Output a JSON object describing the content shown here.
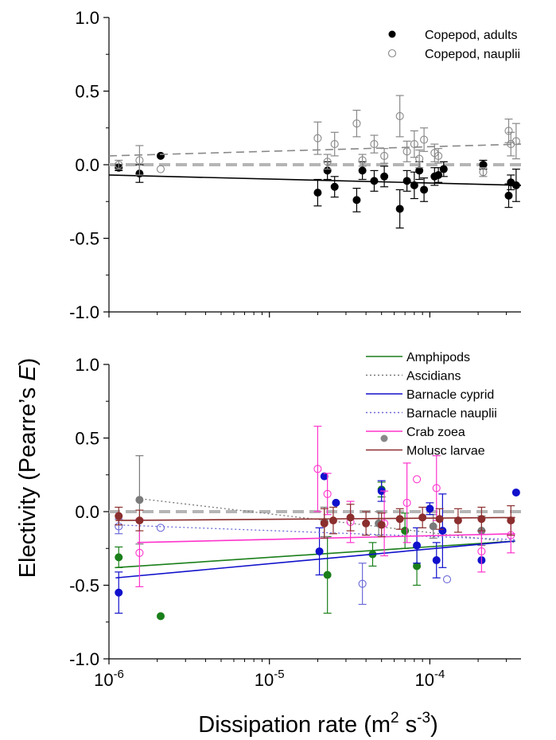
{
  "figure": {
    "ylabel_prefix": "Electivity (Pearre’s ",
    "ylabel_italic": "E",
    "ylabel_suffix": ")",
    "xlabel_prefix": "Dissipation rate (m",
    "xlabel_exp1": "2",
    "xlabel_mid": " s",
    "xlabel_exp2": "-3",
    "xlabel_suffix": ")",
    "xtick_base": "10",
    "xticks": [
      {
        "value": 1e-06,
        "exp": "-6"
      },
      {
        "value": 1e-05,
        "exp": "-5"
      },
      {
        "value": 0.0001,
        "exp": "-4"
      }
    ],
    "yticks": [
      {
        "value": 1.0,
        "label": "1.0"
      },
      {
        "value": 0.5,
        "label": "0.5"
      },
      {
        "value": 0.0,
        "label": "0.0"
      },
      {
        "value": -0.5,
        "label": "-0.5"
      },
      {
        "value": -1.0,
        "label": "-1.0"
      }
    ]
  },
  "chart_data": [
    {
      "type": "scatter",
      "xlabel": "Dissipation rate (m2 s-3)",
      "ylabel": "Electivity (Pearre's E)",
      "xscale": "log",
      "xlim": [
        1e-06,
        0.00037
      ],
      "ylim": [
        -1.0,
        1.0
      ],
      "reference_line": 0.0,
      "legend_position": "top-right",
      "series": [
        {
          "name": "Copepod, adults",
          "color": "#000000",
          "marker": "filled",
          "line_style": "solid",
          "trend": [
            {
              "x": 1e-06,
              "y": -0.07
            },
            {
              "x": 0.00037,
              "y": -0.14
            }
          ],
          "points": [
            {
              "x": 1.15e-06,
              "y": -0.02,
              "err": 0.02
            },
            {
              "x": 1.55e-06,
              "y": -0.06,
              "err": 0.06
            },
            {
              "x": 2.1e-06,
              "y": 0.06,
              "err": null
            },
            {
              "x": 2e-05,
              "y": -0.19,
              "err": 0.09
            },
            {
              "x": 2.3e-05,
              "y": -0.04,
              "err": 0.06
            },
            {
              "x": 2.55e-05,
              "y": -0.15,
              "err": 0.07
            },
            {
              "x": 3.5e-05,
              "y": -0.24,
              "err": 0.08
            },
            {
              "x": 3.8e-05,
              "y": -0.04,
              "err": 0.06
            },
            {
              "x": 4.5e-05,
              "y": -0.11,
              "err": 0.07
            },
            {
              "x": 5.2e-05,
              "y": -0.08,
              "err": 0.07
            },
            {
              "x": 6.5e-05,
              "y": -0.3,
              "err": 0.13
            },
            {
              "x": 7.2e-05,
              "y": -0.11,
              "err": 0.07
            },
            {
              "x": 8e-05,
              "y": -0.14,
              "err": 0.09
            },
            {
              "x": 8.6e-05,
              "y": -0.04,
              "err": 0.06
            },
            {
              "x": 9.2e-05,
              "y": -0.17,
              "err": 0.08
            },
            {
              "x": 0.000107,
              "y": -0.08,
              "err": 0.06
            },
            {
              "x": 0.000113,
              "y": -0.07,
              "err": 0.05
            },
            {
              "x": 0.000122,
              "y": -0.03,
              "err": 0.05
            },
            {
              "x": 0.000215,
              "y": 0.0,
              "err": 0.03
            },
            {
              "x": 0.00031,
              "y": -0.21,
              "err": 0.08
            },
            {
              "x": 0.00032,
              "y": -0.12,
              "err": 0.05
            },
            {
              "x": 0.000345,
              "y": -0.14,
              "err": 0.11
            }
          ]
        },
        {
          "name": "Copepod, nauplii",
          "color": "#888888",
          "marker": "open",
          "line_style": "dashed",
          "trend": [
            {
              "x": 1e-06,
              "y": 0.06
            },
            {
              "x": 0.00037,
              "y": 0.14
            }
          ],
          "points": [
            {
              "x": 1.15e-06,
              "y": 0.0,
              "err": 0.03
            },
            {
              "x": 1.55e-06,
              "y": 0.03,
              "err": 0.1
            },
            {
              "x": 2.1e-06,
              "y": -0.03,
              "err": null
            },
            {
              "x": 2e-05,
              "y": 0.18,
              "err": 0.11
            },
            {
              "x": 2.3e-05,
              "y": 0.02,
              "err": 0.05
            },
            {
              "x": 2.55e-05,
              "y": 0.14,
              "err": 0.08
            },
            {
              "x": 3.5e-05,
              "y": 0.28,
              "err": 0.09
            },
            {
              "x": 3.8e-05,
              "y": 0.03,
              "err": 0.04
            },
            {
              "x": 4.5e-05,
              "y": 0.14,
              "err": 0.06
            },
            {
              "x": 5.2e-05,
              "y": 0.06,
              "err": 0.05
            },
            {
              "x": 6.5e-05,
              "y": 0.33,
              "err": 0.14
            },
            {
              "x": 7.2e-05,
              "y": 0.09,
              "err": 0.07
            },
            {
              "x": 8e-05,
              "y": 0.14,
              "err": 0.09
            },
            {
              "x": 8.6e-05,
              "y": 0.04,
              "err": 0.06
            },
            {
              "x": 9.2e-05,
              "y": 0.17,
              "err": 0.08
            },
            {
              "x": 0.000107,
              "y": 0.08,
              "err": 0.06
            },
            {
              "x": 0.000113,
              "y": 0.06,
              "err": 0.05
            },
            {
              "x": 0.000215,
              "y": -0.05,
              "err": 0.03
            },
            {
              "x": 0.00031,
              "y": 0.23,
              "err": 0.08
            },
            {
              "x": 0.00032,
              "y": 0.14,
              "err": 0.08
            },
            {
              "x": 0.000345,
              "y": 0.16,
              "err": 0.12
            }
          ]
        }
      ]
    },
    {
      "type": "scatter",
      "xlabel": "Dissipation rate (m2 s-3)",
      "ylabel": "Electivity (Pearre's E)",
      "xscale": "log",
      "xlim": [
        1e-06,
        0.00037
      ],
      "ylim": [
        -1.0,
        1.0
      ],
      "reference_line": 0.0,
      "legend_position": "top-right",
      "series": [
        {
          "name": "Amphipods",
          "color": "#1a7f1a",
          "marker": "filled",
          "line_style": "solid",
          "trend": [
            {
              "x": 1.1e-06,
              "y": -0.38
            },
            {
              "x": 0.00034,
              "y": -0.2
            }
          ],
          "points": [
            {
              "x": 1.15e-06,
              "y": -0.31,
              "err": 0.07
            },
            {
              "x": 2.1e-06,
              "y": -0.71,
              "err": null
            },
            {
              "x": 2.3e-05,
              "y": -0.43,
              "err": 0.26
            },
            {
              "x": 4.4e-05,
              "y": -0.29,
              "err": 0.08
            },
            {
              "x": 5e-05,
              "y": 0.15,
              "err": 0.05
            },
            {
              "x": 7e-05,
              "y": -0.13,
              "err": 0.12
            },
            {
              "x": 8.3e-05,
              "y": -0.37,
              "err": 0.13
            }
          ]
        },
        {
          "name": "Ascidians",
          "color": "#7a7a7a",
          "marker": "filled",
          "line_style": "dotted",
          "trend": [
            {
              "x": 1.5e-06,
              "y": 0.09
            },
            {
              "x": 0.00034,
              "y": -0.21
            }
          ],
          "points": [
            {
              "x": 1.55e-06,
              "y": 0.08,
              "err": 0.3
            },
            {
              "x": 2.2e-05,
              "y": -0.07,
              "err": 0.1
            },
            {
              "x": 4.8e-05,
              "y": -0.08,
              "err": 0.08
            },
            {
              "x": 0.000105,
              "y": -0.1,
              "err": 0.08
            },
            {
              "x": 0.00021,
              "y": -0.13,
              "err": 0.1
            }
          ]
        },
        {
          "name": "Barnacle cyprid",
          "color": "#1010cc",
          "marker": "filled",
          "line_style": "solid",
          "trend": [
            {
              "x": 1.1e-06,
              "y": -0.45
            },
            {
              "x": 0.00034,
              "y": -0.2
            }
          ],
          "points": [
            {
              "x": 1.15e-06,
              "y": -0.55,
              "err": 0.14
            },
            {
              "x": 2.05e-05,
              "y": -0.27,
              "err": 0.16
            },
            {
              "x": 2.2e-05,
              "y": 0.24,
              "err": null
            },
            {
              "x": 2.6e-05,
              "y": 0.06,
              "err": null
            },
            {
              "x": 5e-05,
              "y": 0.14,
              "err": 0.07
            },
            {
              "x": 8.3e-05,
              "y": -0.23,
              "err": 0.12
            },
            {
              "x": 0.0001,
              "y": 0.02,
              "err": 0.04
            },
            {
              "x": 0.00011,
              "y": -0.33,
              "err": 0.12
            },
            {
              "x": 0.00012,
              "y": -0.13,
              "err": 0.25
            },
            {
              "x": 0.00021,
              "y": -0.33,
              "err": null
            },
            {
              "x": 0.000345,
              "y": 0.13,
              "err": null
            }
          ]
        },
        {
          "name": "Barnacle nauplii",
          "color": "#6a6ad8",
          "marker": "open",
          "line_style": "dotted",
          "trend": [
            {
              "x": 1.1e-06,
              "y": -0.09
            },
            {
              "x": 0.00034,
              "y": -0.19
            }
          ],
          "points": [
            {
              "x": 1.15e-06,
              "y": -0.1,
              "err": 0.05
            },
            {
              "x": 2.1e-06,
              "y": -0.11,
              "err": null
            },
            {
              "x": 3.8e-05,
              "y": -0.49,
              "err": 0.14
            },
            {
              "x": 0.000128,
              "y": -0.46,
              "err": null
            }
          ]
        },
        {
          "name": "Crab zoea",
          "color": "#ff33cc",
          "marker": "open",
          "line_style": "solid",
          "trend": [
            {
              "x": 1.5e-06,
              "y": -0.21
            },
            {
              "x": 0.00034,
              "y": -0.15
            }
          ],
          "points": [
            {
              "x": 1.55e-06,
              "y": -0.28,
              "err": 0.23
            },
            {
              "x": 2e-05,
              "y": 0.29,
              "err": 0.29
            },
            {
              "x": 2.3e-05,
              "y": 0.12,
              "err": 0.14
            },
            {
              "x": 3.2e-05,
              "y": -0.07,
              "err": 0.14
            },
            {
              "x": 5.2e-05,
              "y": -0.08,
              "err": 0.22
            },
            {
              "x": 7.2e-05,
              "y": 0.06,
              "err": 0.27
            },
            {
              "x": 8.3e-05,
              "y": 0.22,
              "err": null
            },
            {
              "x": 0.00011,
              "y": 0.16,
              "err": 0.22
            },
            {
              "x": 0.00021,
              "y": -0.27,
              "err": 0.14
            },
            {
              "x": 0.00032,
              "y": -0.16,
              "err": 0.12
            }
          ]
        },
        {
          "name": "Molusc larvae",
          "color": "#8b2e2e",
          "marker": "filled",
          "line_style": "solid",
          "trend": [
            {
              "x": 1.1e-06,
              "y": -0.06
            },
            {
              "x": 0.00034,
              "y": -0.04
            }
          ],
          "points": [
            {
              "x": 1.15e-06,
              "y": -0.03,
              "err": 0.06
            },
            {
              "x": 1.55e-06,
              "y": -0.06,
              "err": 0.07
            },
            {
              "x": 2.2e-05,
              "y": -0.08,
              "err": 0.1
            },
            {
              "x": 2.5e-05,
              "y": -0.06,
              "err": 0.09
            },
            {
              "x": 3.2e-05,
              "y": -0.04,
              "err": 0.09
            },
            {
              "x": 4e-05,
              "y": -0.08,
              "err": 0.08
            },
            {
              "x": 5e-05,
              "y": -0.09,
              "err": 0.08
            },
            {
              "x": 6.5e-05,
              "y": -0.05,
              "err": 0.07
            },
            {
              "x": 9e-05,
              "y": -0.04,
              "err": 0.07
            },
            {
              "x": 0.000115,
              "y": -0.05,
              "err": 0.07
            },
            {
              "x": 0.00015,
              "y": -0.06,
              "err": 0.08
            },
            {
              "x": 0.00021,
              "y": -0.05,
              "err": 0.08
            },
            {
              "x": 0.00032,
              "y": -0.06,
              "err": 0.1
            }
          ]
        }
      ]
    }
  ]
}
